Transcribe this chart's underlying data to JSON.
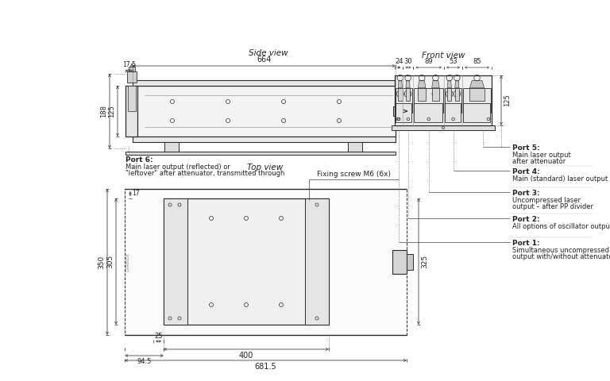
{
  "bg_color": "#ffffff",
  "line_color": "#2a2a2a",
  "dim_color": "#444444",
  "text_color": "#222222",
  "title_sv": "Side view",
  "title_fv": "Front view",
  "title_tv": "Top view",
  "side_dims": {
    "width_label": "664",
    "offset_label": "17.5",
    "height_label": "188",
    "inner_height_label": "125"
  },
  "front_dims": {
    "d1": "24",
    "d2": "30",
    "d3": "89",
    "d4": "53",
    "d5": "85",
    "height_label": "125"
  },
  "top_dims": {
    "width_label": "681.5",
    "inner_width_label": "400",
    "offset1_label": "94.5",
    "offset2_label": "25",
    "height_label": "350",
    "inner_height_label": "305",
    "right_dim_label": "325",
    "top_offset_label": "17"
  },
  "port6_label": [
    "Port 6:",
    "Main laser output (reflected) or",
    "\"leftover\" after attenuator, transmitted through"
  ],
  "port5_label": [
    "Port 5:",
    "Main laser output",
    "after attenuator"
  ],
  "port4_label": [
    "Port 4:",
    "Main (standard) laser output"
  ],
  "port3_label": [
    "Port 3:",
    "Uncompressed laser",
    "output – after PP divider"
  ],
  "port2_label": [
    "Port 2:",
    "All options of oscillator output"
  ],
  "port1_label": [
    "Port 1:",
    "Simultaneous uncompressed laser",
    "output with/without attenuator"
  ],
  "fixing_screw_label": "Fixing screw M6 (6x)"
}
